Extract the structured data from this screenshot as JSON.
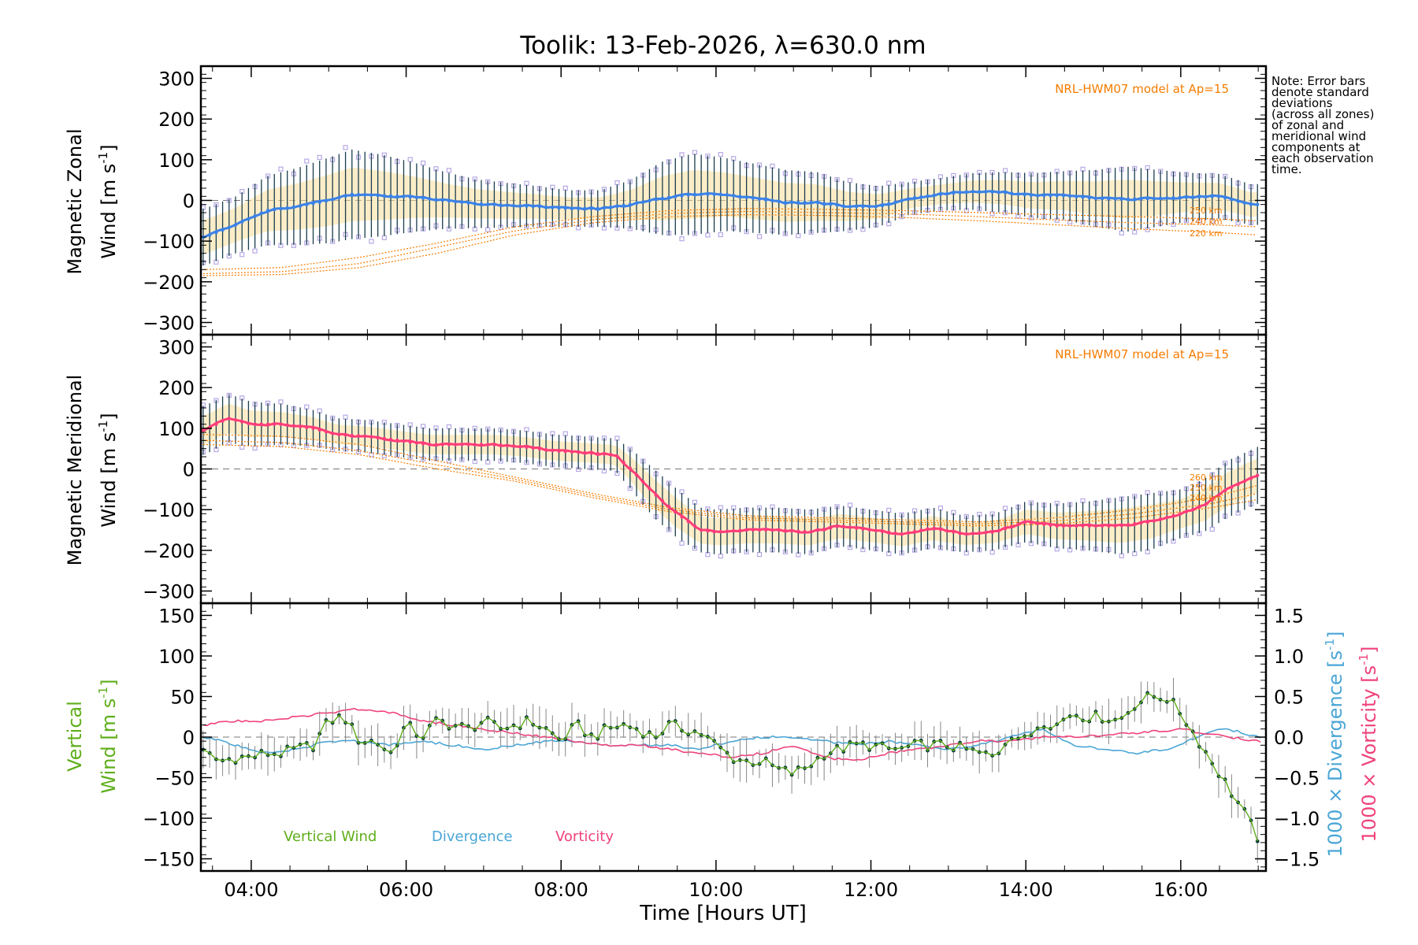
{
  "title": "Toolik: 13-Feb-2026, λ=630.0 nm",
  "note": [
    "Note: Error bars",
    "denote standard",
    "deviations",
    "(across all zones)",
    "of zonal and",
    "meridional wind",
    "components at",
    "each observation",
    "time."
  ],
  "colors": {
    "zonal": "#3b82e8",
    "meridional": "#ff3d7a",
    "model": "#f57c00",
    "vertical": "#5fae1a",
    "divergence": "#4aa6d6",
    "vorticity": "#f0427a",
    "zone_points": "#b7a8e6",
    "error_bar": "#1a3d4d",
    "shade": "#f9df9a"
  },
  "chart_data": [
    {
      "type": "line",
      "title": "",
      "ylabel": "Magnetic Zonal",
      "ylabel2": "Wind [m s",
      "ylabel_sup": "-1",
      "ylabel_close": "]",
      "ylim": [
        -330,
        330
      ],
      "yticks": [
        "300",
        "200",
        "100",
        "0",
        "−100",
        "−200",
        "−300"
      ],
      "ytick_values": [
        300,
        200,
        100,
        0,
        -100,
        -200,
        -300
      ],
      "model_label": "NRL-HWM07 model at Ap=15",
      "model_alt_labels": [
        "250 km",
        "240 km",
        "220 km"
      ],
      "series": [
        {
          "name": "Zonal wind",
          "x": [
            3.4,
            3.8,
            4.2,
            4.6,
            5.0,
            5.3,
            5.7,
            6.1,
            6.5,
            6.9,
            7.3,
            7.7,
            8.1,
            8.5,
            8.9,
            9.3,
            9.7,
            10.1,
            10.5,
            10.9,
            11.3,
            11.7,
            12.1,
            12.5,
            12.9,
            13.3,
            13.7,
            14.1,
            14.5,
            14.9,
            15.3,
            15.7,
            16.1,
            16.5,
            16.9
          ],
          "values": [
            -90,
            -60,
            -25,
            -15,
            0,
            15,
            12,
            8,
            0,
            -8,
            -12,
            -15,
            -20,
            -20,
            -10,
            5,
            15,
            15,
            5,
            -5,
            -5,
            -15,
            -15,
            5,
            15,
            22,
            20,
            12,
            12,
            5,
            3,
            5,
            8,
            10,
            -10
          ],
          "error": [
            70,
            70,
            85,
            95,
            105,
            110,
            100,
            85,
            70,
            60,
            55,
            50,
            45,
            45,
            60,
            90,
            100,
            90,
            85,
            80,
            75,
            60,
            50,
            40,
            40,
            45,
            50,
            55,
            60,
            70,
            80,
            70,
            60,
            55,
            50
          ]
        },
        {
          "name": "Model 250 km",
          "x": [
            3.4,
            4.4,
            5.4,
            6.4,
            7.4,
            8.4,
            9.4,
            10.4,
            11.4,
            12.4,
            13.4,
            14.4,
            15.4,
            16.4,
            17.0
          ],
          "values": [
            -170,
            -165,
            -140,
            -105,
            -65,
            -40,
            -25,
            -20,
            -22,
            -25,
            -30,
            -35,
            -40,
            -45,
            -50
          ]
        },
        {
          "name": "Model 240 km",
          "x": [
            3.4,
            4.4,
            5.4,
            6.4,
            7.4,
            8.4,
            9.4,
            10.4,
            11.4,
            12.4,
            13.4,
            14.4,
            15.4,
            16.4,
            17.0
          ],
          "values": [
            -180,
            -175,
            -155,
            -115,
            -75,
            -48,
            -32,
            -27,
            -30,
            -33,
            -40,
            -48,
            -55,
            -60,
            -65
          ]
        },
        {
          "name": "Model 220 km",
          "x": [
            3.4,
            4.4,
            5.4,
            6.4,
            7.4,
            8.4,
            9.4,
            10.4,
            11.4,
            12.4,
            13.4,
            14.4,
            15.4,
            16.4,
            17.0
          ],
          "values": [
            -185,
            -182,
            -165,
            -130,
            -85,
            -55,
            -40,
            -35,
            -37,
            -42,
            -50,
            -60,
            -70,
            -78,
            -85
          ]
        }
      ]
    },
    {
      "type": "line",
      "ylabel": "Magnetic Meridional",
      "ylabel2": "Wind [m s",
      "ylabel_sup": "-1",
      "ylabel_close": "]",
      "ylim": [
        -330,
        330
      ],
      "yticks": [
        "300",
        "200",
        "100",
        "0",
        "−100",
        "−200",
        "−300"
      ],
      "ytick_values": [
        300,
        200,
        100,
        0,
        -100,
        -200,
        -300
      ],
      "model_label": "NRL-HWM07 model at Ap=15",
      "model_alt_labels": [
        "260 km",
        "250 km",
        "240 km"
      ],
      "series": [
        {
          "name": "Meridional wind",
          "x": [
            3.4,
            3.7,
            4.0,
            4.4,
            4.8,
            5.1,
            5.5,
            5.9,
            6.3,
            6.7,
            7.1,
            7.5,
            7.9,
            8.3,
            8.7,
            8.9,
            9.2,
            9.5,
            9.8,
            10.0,
            10.4,
            10.8,
            11.2,
            11.6,
            12.0,
            12.4,
            12.8,
            13.2,
            13.6,
            14.0,
            14.4,
            14.8,
            15.2,
            15.6,
            16.0,
            16.3,
            16.6,
            17.0
          ],
          "values": [
            95,
            125,
            110,
            110,
            100,
            85,
            80,
            70,
            60,
            60,
            60,
            55,
            45,
            40,
            35,
            0,
            -60,
            -110,
            -150,
            -155,
            -150,
            -150,
            -155,
            -140,
            -150,
            -160,
            -145,
            -160,
            -155,
            -130,
            -140,
            -140,
            -140,
            -130,
            -110,
            -90,
            -50,
            -15
          ],
          "error": [
            60,
            60,
            55,
            50,
            45,
            40,
            40,
            40,
            40,
            40,
            40,
            40,
            40,
            40,
            40,
            50,
            60,
            60,
            55,
            55,
            55,
            55,
            55,
            50,
            50,
            50,
            50,
            45,
            45,
            50,
            55,
            60,
            70,
            70,
            60,
            65,
            70,
            70
          ]
        },
        {
          "name": "Model 260 km",
          "x": [
            3.4,
            4.4,
            5.4,
            6.4,
            7.4,
            8.4,
            9.4,
            10.4,
            11.4,
            12.4,
            13.4,
            14.4,
            15.4,
            16.4,
            17.0
          ],
          "values": [
            85,
            80,
            60,
            20,
            -20,
            -60,
            -95,
            -115,
            -120,
            -125,
            -130,
            -120,
            -100,
            -70,
            -40
          ]
        },
        {
          "name": "Model 250 km",
          "x": [
            3.4,
            4.4,
            5.4,
            6.4,
            7.4,
            8.4,
            9.4,
            10.4,
            11.4,
            12.4,
            13.4,
            14.4,
            15.4,
            16.4,
            17.0
          ],
          "values": [
            70,
            65,
            45,
            10,
            -25,
            -65,
            -100,
            -120,
            -125,
            -130,
            -135,
            -128,
            -110,
            -85,
            -60
          ]
        },
        {
          "name": "Model 240 km",
          "x": [
            3.4,
            4.4,
            5.4,
            6.4,
            7.4,
            8.4,
            9.4,
            10.4,
            11.4,
            12.4,
            13.4,
            14.4,
            15.4,
            16.4,
            17.0
          ],
          "values": [
            60,
            55,
            35,
            0,
            -30,
            -70,
            -105,
            -125,
            -130,
            -135,
            -140,
            -135,
            -120,
            -95,
            -75
          ]
        }
      ]
    },
    {
      "type": "line",
      "xlabel": "Time [Hours UT]",
      "xticks": [
        "04:00",
        "06:00",
        "08:00",
        "10:00",
        "12:00",
        "14:00",
        "16:00"
      ],
      "xtick_values": [
        4,
        6,
        8,
        10,
        12,
        14,
        16
      ],
      "xlim": [
        3.35,
        17.1
      ],
      "ylabel": "Vertical",
      "ylabel2": "Wind [m s",
      "ylabel_sup": "-1",
      "ylabel_close": "]",
      "ylim": [
        -165,
        165
      ],
      "yticks": [
        "150",
        "100",
        "50",
        "0",
        "−50",
        "−100",
        "−150"
      ],
      "ytick_values": [
        150,
        100,
        50,
        0,
        -50,
        -100,
        -150
      ],
      "y2lim": [
        -1.65,
        1.65
      ],
      "y2ticks": [
        "1.5",
        "1.0",
        "0.5",
        "0.0",
        "−0.5",
        "−1.0",
        "−1.5"
      ],
      "y2tick_values": [
        1.5,
        1.0,
        0.5,
        0.0,
        -0.5,
        -1.0,
        -1.5
      ],
      "y2label_div": "1000 × Divergence [s",
      "y2label_vor": "1000 × Vorticity [s",
      "y2label_sup": "-1",
      "y2label_close": "]",
      "legend": [
        "Vertical Wind",
        "Divergence",
        "Vorticity"
      ],
      "series": [
        {
          "name": "Vertical Wind",
          "x": [
            3.4,
            3.6,
            3.8,
            4.0,
            4.2,
            4.4,
            4.6,
            4.8,
            5.0,
            5.2,
            5.4,
            5.6,
            5.8,
            6.0,
            6.2,
            6.4,
            6.6,
            6.8,
            7.0,
            7.2,
            7.4,
            7.6,
            7.8,
            8.0,
            8.2,
            8.4,
            8.6,
            8.8,
            9.0,
            9.2,
            9.4,
            9.6,
            9.8,
            10.0,
            10.2,
            10.4,
            10.6,
            10.8,
            11.0,
            11.2,
            11.4,
            11.6,
            11.8,
            12.0,
            12.2,
            12.4,
            12.6,
            12.8,
            13.0,
            13.2,
            13.4,
            13.6,
            13.8,
            14.0,
            14.2,
            14.4,
            14.6,
            14.8,
            15.0,
            15.2,
            15.4,
            15.6,
            15.8,
            16.0,
            16.2,
            16.4,
            16.6,
            16.8,
            17.0
          ],
          "values": [
            -20,
            -30,
            -25,
            -25,
            -20,
            -20,
            -15,
            -10,
            20,
            25,
            -5,
            -5,
            -20,
            15,
            0,
            20,
            15,
            10,
            20,
            10,
            15,
            20,
            10,
            -5,
            15,
            0,
            10,
            15,
            10,
            0,
            15,
            10,
            5,
            -10,
            -25,
            -30,
            -30,
            -40,
            -45,
            -35,
            -20,
            -15,
            -10,
            -10,
            -15,
            -15,
            -10,
            -10,
            -10,
            -15,
            -20,
            -25,
            5,
            -5,
            20,
            15,
            30,
            25,
            25,
            20,
            40,
            50,
            50,
            30,
            0,
            -30,
            -60,
            -90,
            -125
          ],
          "error": [
            15
          ]
        },
        {
          "name": "Divergence",
          "x": [
            3.4,
            3.8,
            4.2,
            4.6,
            5.0,
            5.4,
            5.8,
            6.2,
            6.6,
            7.0,
            7.4,
            7.8,
            8.2,
            8.6,
            9.0,
            9.4,
            9.8,
            10.2,
            10.6,
            11.0,
            11.4,
            11.8,
            12.2,
            12.6,
            13.0,
            13.4,
            13.8,
            14.2,
            14.6,
            15.0,
            15.4,
            15.8,
            16.0,
            16.3,
            16.6,
            17.0
          ],
          "values": [
            0.0,
            -0.1,
            -0.2,
            -0.15,
            -0.05,
            -0.05,
            -0.1,
            -0.05,
            -0.1,
            -0.15,
            -0.1,
            -0.05,
            -0.05,
            -0.1,
            -0.1,
            -0.1,
            -0.15,
            -0.05,
            0.0,
            0.0,
            -0.05,
            -0.1,
            -0.05,
            -0.1,
            -0.15,
            -0.1,
            0.0,
            0.1,
            -0.1,
            -0.15,
            -0.2,
            -0.15,
            -0.1,
            0.05,
            0.1,
            0.0
          ]
        },
        {
          "name": "Vorticity",
          "x": [
            3.4,
            3.8,
            4.2,
            4.6,
            5.0,
            5.4,
            5.8,
            6.2,
            6.6,
            7.0,
            7.4,
            7.8,
            8.2,
            8.6,
            9.0,
            9.4,
            9.8,
            10.2,
            10.6,
            11.0,
            11.4,
            11.8,
            12.2,
            12.6,
            13.0,
            13.4,
            13.8,
            14.2,
            14.6,
            15.0,
            15.4,
            15.8,
            16.0,
            16.3,
            16.6,
            17.0
          ],
          "values": [
            0.15,
            0.2,
            0.2,
            0.25,
            0.3,
            0.35,
            0.3,
            0.2,
            0.15,
            0.1,
            0.05,
            0.0,
            -0.05,
            -0.1,
            -0.1,
            -0.15,
            -0.2,
            -0.25,
            -0.2,
            -0.1,
            -0.25,
            -0.3,
            -0.2,
            -0.15,
            -0.1,
            -0.05,
            -0.05,
            0.0,
            0.0,
            0.02,
            0.05,
            0.08,
            0.1,
            0.05,
            0.0,
            -0.05
          ]
        }
      ]
    }
  ]
}
